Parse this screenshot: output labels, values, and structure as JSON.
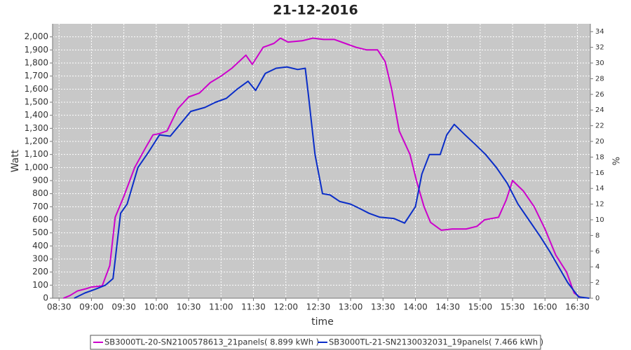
{
  "chart_data": {
    "type": "line",
    "title": "21-12-2016",
    "x_label": "time",
    "y_label": "Watt",
    "y2_label": "%",
    "xlim": [
      "08:24",
      "16:42"
    ],
    "xticks": [
      "08:30",
      "09:00",
      "09:30",
      "10:00",
      "10:30",
      "11:00",
      "11:30",
      "12:00",
      "12:30",
      "13:00",
      "13:30",
      "14:00",
      "14:30",
      "15:00",
      "15:30",
      "16:00",
      "16:30"
    ],
    "ylim": [
      0,
      2100
    ],
    "yticks": [
      0,
      100,
      200,
      300,
      400,
      500,
      600,
      700,
      800,
      900,
      {
        "value": 1000,
        "label": "1,000"
      },
      {
        "value": 1100,
        "label": "1,100"
      },
      {
        "value": 1200,
        "label": "1,200"
      },
      {
        "value": 1300,
        "label": "1,300"
      },
      {
        "value": 1400,
        "label": "1,400"
      },
      {
        "value": 1500,
        "label": "1,500"
      },
      {
        "value": 1600,
        "label": "1,600"
      },
      {
        "value": 1700,
        "label": "1,700"
      },
      {
        "value": 1800,
        "label": "1,800"
      },
      {
        "value": 1900,
        "label": "1,900"
      },
      {
        "value": 2000,
        "label": "2,000"
      }
    ],
    "y2lim": [
      0,
      35
    ],
    "y2ticks": [
      0,
      2,
      4,
      6,
      8,
      10,
      12,
      14,
      16,
      18,
      20,
      22,
      24,
      26,
      28,
      30,
      32,
      34
    ],
    "grid": true,
    "legend": "bottom",
    "series": [
      {
        "name": "SB3000TL-20-SN2100578613_21panels( 8.899 kWh )",
        "color": "#cc00cc",
        "x": [
          "08:34",
          "08:40",
          "08:47",
          "08:54",
          "09:00",
          "09:10",
          "09:17",
          "09:22",
          "09:30",
          "09:40",
          "09:50",
          "09:57",
          "10:03",
          "10:10",
          "10:20",
          "10:30",
          "10:40",
          "10:50",
          "11:00",
          "11:10",
          "11:23",
          "11:29",
          "11:39",
          "11:49",
          "11:55",
          "12:02",
          "12:15",
          "12:25",
          "12:35",
          "12:45",
          "12:55",
          "13:05",
          "13:15",
          "13:25",
          "13:32",
          "13:38",
          "13:45",
          "13:55",
          "14:01",
          "14:08",
          "14:14",
          "14:24",
          "14:34",
          "14:47",
          "14:57",
          "15:04",
          "15:17",
          "15:24",
          "15:30",
          "15:40",
          "15:50",
          "16:00",
          "16:10",
          "16:20",
          "16:27",
          "16:33"
        ],
        "values": [
          0,
          20,
          55,
          70,
          85,
          95,
          250,
          620,
          780,
          1000,
          1150,
          1250,
          1260,
          1280,
          1450,
          1540,
          1570,
          1650,
          1700,
          1760,
          1860,
          1790,
          1920,
          1950,
          1990,
          1960,
          1970,
          1990,
          1980,
          1980,
          1950,
          1920,
          1900,
          1900,
          1810,
          1600,
          1280,
          1100,
          900,
          700,
          580,
          520,
          530,
          530,
          550,
          600,
          620,
          750,
          900,
          820,
          700,
          530,
          330,
          200,
          40,
          5
        ]
      },
      {
        "name": "SB3000TL-21-SN2130032031_19panels( 7.466 kWh )",
        "color": "#0a2dc8",
        "x": [
          "08:44",
          "08:54",
          "09:04",
          "09:13",
          "09:20",
          "09:27",
          "09:33",
          "09:43",
          "09:53",
          "10:03",
          "10:13",
          "10:22",
          "10:32",
          "10:45",
          "10:55",
          "11:05",
          "11:15",
          "11:25",
          "11:32",
          "11:41",
          "11:51",
          "12:01",
          "12:11",
          "12:18",
          "12:21",
          "12:27",
          "12:34",
          "12:41",
          "12:50",
          "13:00",
          "13:10",
          "13:17",
          "13:27",
          "13:40",
          "13:50",
          "14:00",
          "14:06",
          "14:13",
          "14:23",
          "14:29",
          "14:36",
          "14:46",
          "14:55",
          "15:05",
          "15:15",
          "15:25",
          "15:35",
          "15:45",
          "15:55",
          "16:05",
          "16:14",
          "16:21",
          "16:31",
          "16:41"
        ],
        "values": [
          0,
          40,
          70,
          100,
          150,
          650,
          720,
          1000,
          1120,
          1250,
          1240,
          1330,
          1430,
          1460,
          1500,
          1530,
          1600,
          1660,
          1590,
          1720,
          1760,
          1770,
          1750,
          1760,
          1550,
          1100,
          800,
          790,
          740,
          720,
          680,
          650,
          620,
          610,
          575,
          700,
          950,
          1100,
          1100,
          1250,
          1330,
          1250,
          1180,
          1100,
          1000,
          880,
          720,
          600,
          480,
          350,
          220,
          120,
          10,
          0
        ]
      }
    ]
  }
}
